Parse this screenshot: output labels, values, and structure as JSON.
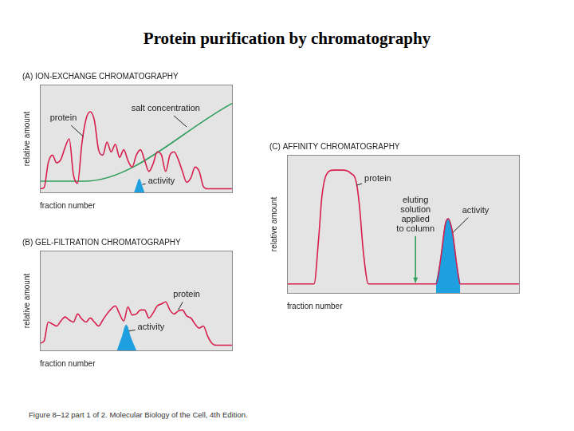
{
  "title": "Protein purification by chromatography",
  "caption": "Figure 8–12 part 1 of 2. Molecular Biology of the Cell, 4th Edition.",
  "chart_data": [
    {
      "type": "line",
      "title": "(A) ION-EXCHANGE CHROMATOGRAPHY",
      "x_label": "fraction number",
      "y_label": "relative amount",
      "xlim": [
        0,
        46
      ],
      "ylim": [
        0,
        100
      ],
      "tick_labels": false,
      "grid": false,
      "series": [
        {
          "type": "line",
          "color": "#d81e4c",
          "line_style": "solid",
          "x": [
            0,
            1,
            2,
            3,
            4,
            5,
            6,
            7,
            8,
            9,
            10,
            11,
            12,
            13,
            14,
            15,
            16,
            17,
            18,
            19,
            20,
            21,
            22,
            23,
            24,
            25,
            26,
            27,
            28,
            29,
            30,
            31,
            32,
            33,
            34,
            35,
            36,
            37,
            38,
            39,
            40,
            41,
            42,
            43,
            44,
            45,
            46
          ],
          "values": [
            4,
            5,
            28,
            35,
            28,
            31,
            42,
            50,
            17,
            9,
            45,
            68,
            75,
            67,
            40,
            35,
            47,
            38,
            45,
            33,
            40,
            30,
            24,
            35,
            40,
            30,
            20,
            27,
            38,
            35,
            20,
            35,
            38,
            31,
            20,
            10,
            14,
            24,
            20,
            6,
            4,
            4,
            4,
            4,
            4,
            4,
            4
          ]
        },
        {
          "type": "line",
          "color": "#2e9e5a",
          "line_style": "solid",
          "x": [
            0,
            10.6,
            46
          ],
          "values": [
            11,
            11,
            83
          ]
        },
        {
          "type": "area",
          "color": "#1ea0e0",
          "line_style": "solid",
          "x": [
            22.5,
            23.2,
            23.7,
            24.2,
            24.9
          ],
          "values": [
            0,
            8,
            13,
            8,
            0
          ]
        }
      ],
      "annotations": [
        {
          "text": "protein",
          "x": 5.6,
          "y": 69,
          "point_x": 10.4,
          "point_y": 52,
          "line_style": "solid",
          "color": "#222222"
        },
        {
          "text": "salt concentration",
          "x": 30,
          "y": 78,
          "point_x": 35,
          "point_y": 61,
          "line_style": "solid",
          "color": "#222222"
        },
        {
          "text": "activity",
          "x": 29,
          "y": 11,
          "point_x": 24.4,
          "point_y": 8,
          "line_style": "solid",
          "color": "#222222"
        }
      ]
    },
    {
      "type": "line",
      "title": "(B) GEL-FILTRATION CHROMATOGRAPHY",
      "x_label": "fraction number",
      "y_label": "relative amount",
      "xlim": [
        0,
        46
      ],
      "ylim": [
        0,
        100
      ],
      "tick_labels": false,
      "grid": false,
      "series": [
        {
          "type": "line",
          "color": "#d81e4c",
          "line_style": "solid",
          "x": [
            0,
            1,
            2,
            3,
            4,
            5,
            6,
            7,
            8,
            9,
            10,
            11,
            12,
            13,
            14,
            15,
            16,
            17,
            18,
            19,
            20,
            21,
            22,
            23,
            24,
            25,
            26,
            27,
            28,
            29,
            30,
            31,
            32,
            33,
            34,
            35,
            36,
            37,
            38,
            39,
            40,
            41,
            42,
            43,
            44,
            45,
            46
          ],
          "values": [
            8,
            10,
            29,
            27,
            25,
            30,
            34,
            31,
            29,
            37,
            32,
            29,
            33,
            29,
            25,
            31,
            37,
            42,
            45,
            37,
            30,
            44,
            36,
            37,
            41,
            41,
            33,
            38,
            45,
            47,
            49,
            41,
            37,
            40,
            41,
            35,
            33,
            27,
            23,
            25,
            15,
            8,
            6,
            6,
            6,
            6,
            6
          ]
        },
        {
          "type": "area",
          "color": "#1ea0e0",
          "line_style": "solid",
          "x": [
            18.4,
            19.6,
            20.6,
            21.6,
            23
          ],
          "values": [
            0,
            14,
            26,
            14,
            0
          ]
        }
      ],
      "annotations": [
        {
          "text": "protein",
          "x": 35,
          "y": 56,
          "point_x": 33,
          "point_y": 41,
          "line_style": "solid",
          "color": "#222222"
        },
        {
          "text": "activity",
          "x": 26.5,
          "y": 24,
          "point_x": 21.2,
          "point_y": 20,
          "line_style": "solid",
          "color": "#222222"
        }
      ]
    },
    {
      "type": "line",
      "title": "(C) AFFINITY CHROMATOGRAPHY",
      "x_label": "fraction number",
      "y_label": "relative amount",
      "xlim": [
        0,
        50
      ],
      "ylim": [
        0,
        100
      ],
      "tick_labels": false,
      "grid": false,
      "series": [
        {
          "type": "line",
          "color": "#d81e4c",
          "line_style": "solid",
          "x": [
            0,
            5.8,
            6.8,
            7.5,
            8.5,
            10,
            12,
            13.6,
            14.9,
            15.6,
            16.4,
            17.5,
            32,
            33,
            34,
            34.6,
            35.5,
            36.5,
            37.2,
            50
          ],
          "values": [
            7,
            7,
            40,
            70,
            86,
            89,
            89,
            87,
            80,
            62,
            30,
            7,
            7,
            25,
            50,
            54,
            45,
            20,
            7,
            7
          ]
        },
        {
          "type": "area",
          "color": "#1ea0e0",
          "line_style": "solid",
          "x": [
            32,
            33,
            34,
            34.6,
            35.5,
            36.5,
            37.2
          ],
          "values": [
            7,
            25,
            50,
            54,
            45,
            20,
            7
          ]
        }
      ],
      "annotations": [
        {
          "text": "protein",
          "x": 19.5,
          "y": 83,
          "point_x": 14.9,
          "point_y": 78,
          "line_style": "solid",
          "color": "#222222"
        },
        {
          "text": [
            "eluting",
            "solution",
            "applied",
            "to column"
          ],
          "x": 27.6,
          "y": 57,
          "point_x": 27.6,
          "point_y": 8,
          "line_style": "arrow",
          "color": "#2e9e5a"
        },
        {
          "text": "activity",
          "x": 40.5,
          "y": 60,
          "point_x": 35.6,
          "point_y": 44,
          "line_style": "solid",
          "color": "#222222"
        }
      ]
    }
  ]
}
